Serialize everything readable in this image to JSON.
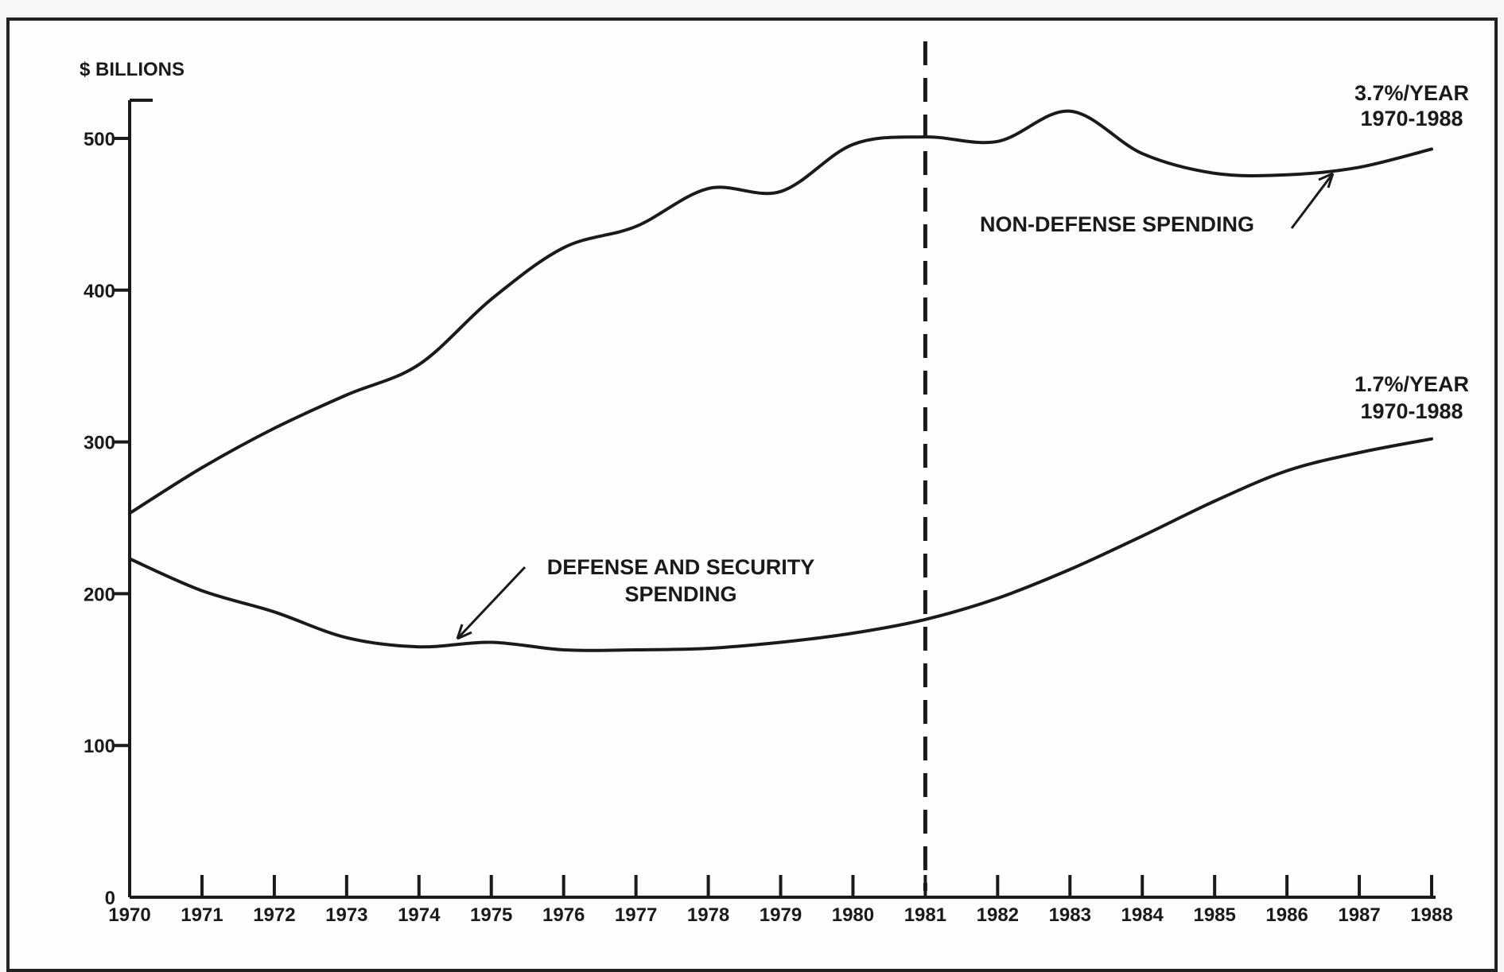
{
  "chart_data": {
    "type": "line",
    "unit_label": "$ BILLIONS",
    "x": [
      1970,
      1971,
      1972,
      1973,
      1974,
      1975,
      1976,
      1977,
      1978,
      1979,
      1980,
      1981,
      1982,
      1983,
      1984,
      1985,
      1986,
      1987,
      1988
    ],
    "x_tick_labels": [
      "1970",
      "1971",
      "1972",
      "1973",
      "1974",
      "1975",
      "1976",
      "1977",
      "1978",
      "1979",
      "1980",
      "1981",
      "1982",
      "1983",
      "1984",
      "1985",
      "1986",
      "1987",
      "1988"
    ],
    "y_ticks": [
      0,
      100,
      200,
      300,
      400,
      500
    ],
    "y_tick_labels": [
      "0",
      "100",
      "200",
      "300",
      "400",
      "500"
    ],
    "xlim": [
      1970,
      1988
    ],
    "ylim": [
      0,
      550
    ],
    "grid": false,
    "reference_line": {
      "x": 1981,
      "style": "dashed"
    },
    "series": [
      {
        "name": "NON-DEFENSE SPENDING",
        "values": [
          253,
          283,
          309,
          331,
          351,
          394,
          428,
          442,
          467,
          465,
          496,
          501,
          498,
          518,
          490,
          477,
          476,
          481,
          493
        ]
      },
      {
        "name": "DEFENSE AND SECURITY SPENDING",
        "values": [
          223,
          202,
          188,
          171,
          165,
          168,
          163,
          163,
          164,
          168,
          174,
          183,
          197,
          216,
          238,
          261,
          281,
          293,
          302
        ]
      }
    ],
    "annotations": [
      {
        "id": "nondef-label",
        "text": "NON-DEFENSE SPENDING"
      },
      {
        "id": "nondef-rate",
        "lines": [
          "3.7%/YEAR",
          "1970-1988"
        ]
      },
      {
        "id": "def-label",
        "lines": [
          "DEFENSE AND SECURITY",
          "SPENDING"
        ]
      },
      {
        "id": "def-rate",
        "lines": [
          "1.7%/YEAR",
          "1970-1988"
        ]
      }
    ]
  }
}
